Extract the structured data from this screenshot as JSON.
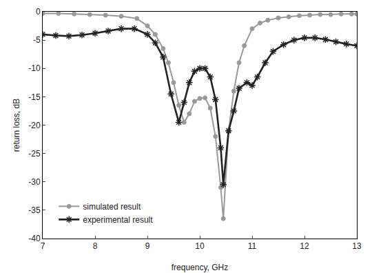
{
  "chart_data": {
    "type": "line",
    "x_label": "frequency, GHz",
    "y_label": "return loss, dB",
    "xlim": [
      7,
      13
    ],
    "xticks": [
      7,
      8,
      9,
      10,
      11,
      12,
      13
    ],
    "ylim": [
      -40,
      0
    ],
    "yticks": [
      -40,
      -35,
      -30,
      -25,
      -20,
      -15,
      -10,
      -5,
      0
    ],
    "grid": false,
    "legend": "lower left",
    "series": [
      {
        "name": "simulated result",
        "color": "#999999",
        "marker": "circle",
        "line_style": "solid",
        "x": [
          7,
          7.3,
          7.6,
          7.9,
          8.2,
          8.5,
          8.8,
          9.0,
          9.15,
          9.3,
          9.4,
          9.5,
          9.6,
          9.7,
          9.8,
          9.9,
          10.0,
          10.1,
          10.2,
          10.3,
          10.4,
          10.45,
          10.55,
          10.65,
          10.75,
          10.85,
          11.0,
          11.15,
          11.3,
          11.5,
          11.7,
          11.9,
          12.1,
          12.3,
          12.5,
          12.7,
          12.9,
          13
        ],
        "values": [
          -0.3,
          -0.3,
          -0.4,
          -0.5,
          -0.6,
          -0.8,
          -1.2,
          -2.5,
          -4,
          -6.5,
          -9,
          -12.5,
          -16.5,
          -19.5,
          -18,
          -15.8,
          -15.3,
          -15.2,
          -17,
          -22,
          -31,
          -36.5,
          -21,
          -14,
          -9,
          -6,
          -3,
          -2,
          -1.5,
          -1.1,
          -0.9,
          -0.7,
          -0.6,
          -0.5,
          -0.5,
          -0.4,
          -0.4,
          -0.4
        ]
      },
      {
        "name": "experimental result",
        "color": "#222222",
        "marker": "asterisk",
        "line_style": "solid",
        "x": [
          7,
          7.25,
          7.5,
          7.75,
          8,
          8.25,
          8.5,
          8.75,
          9.0,
          9.15,
          9.3,
          9.45,
          9.6,
          9.7,
          9.8,
          9.9,
          10.0,
          10.1,
          10.2,
          10.3,
          10.4,
          10.45,
          10.55,
          10.65,
          10.75,
          10.9,
          11.0,
          11.1,
          11.25,
          11.4,
          11.6,
          11.8,
          12.0,
          12.2,
          12.4,
          12.6,
          12.8,
          13
        ],
        "values": [
          -4,
          -4.2,
          -4.3,
          -4.1,
          -3.8,
          -3.4,
          -3,
          -3,
          -4,
          -5.5,
          -8,
          -14.5,
          -19.5,
          -16,
          -12.5,
          -10.5,
          -10,
          -10,
          -11.5,
          -15.5,
          -24,
          -30.5,
          -21,
          -17.5,
          -13.5,
          -12.5,
          -13,
          -11.5,
          -9,
          -7,
          -5.8,
          -5,
          -4.6,
          -4.6,
          -4.9,
          -5.3,
          -5.7,
          -6
        ]
      }
    ]
  }
}
